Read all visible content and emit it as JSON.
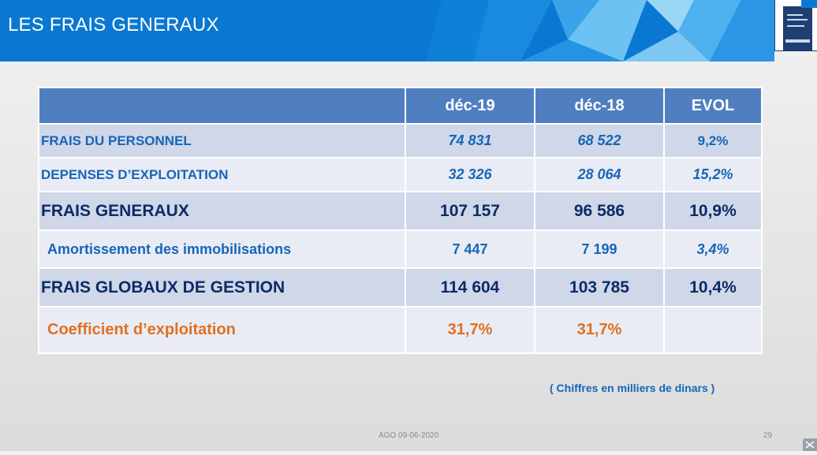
{
  "slide": {
    "title": "LES FRAIS GENERAUX",
    "footer_text": "AGO 09-06-2020",
    "page_number": "29",
    "note": "( Chiffres en milliers de dinars )"
  },
  "table": {
    "headers": [
      "",
      "déc-19",
      "déc-18",
      "EVOL"
    ],
    "rows": [
      {
        "label": "FRAIS DU PERSONNEL",
        "dec19": "74 831",
        "dec18": "68 522",
        "evol": "9,2%"
      },
      {
        "label": "DEPENSES D’EXPLOITATION",
        "dec19": "32 326",
        "dec18": "28 064",
        "evol": "15,2%"
      },
      {
        "label": "FRAIS GENERAUX",
        "dec19": "107 157",
        "dec18": "96 586",
        "evol": "10,9%"
      },
      {
        "label": "Amortissement des immobilisations",
        "dec19": "7 447",
        "dec18": "7 199",
        "evol": "3,4%"
      },
      {
        "label": "FRAIS GLOBAUX DE GESTION",
        "dec19": "114 604",
        "dec18": "103 785",
        "evol": "10,4%"
      },
      {
        "label": "Coefficient d’exploitation",
        "dec19": "31,7%",
        "dec18": "31,7%",
        "evol": ""
      }
    ]
  },
  "colors": {
    "header_blue": "#0a78d2",
    "table_header": "#4f7fc0",
    "row_dark": "#cfd7e8",
    "row_light": "#e9ecf5",
    "text_blue": "#1566b8",
    "text_navy": "#0c2b66",
    "text_orange": "#e07020"
  },
  "icons": {
    "logo": "bank-logo-icon",
    "corner": "expand-icon"
  }
}
